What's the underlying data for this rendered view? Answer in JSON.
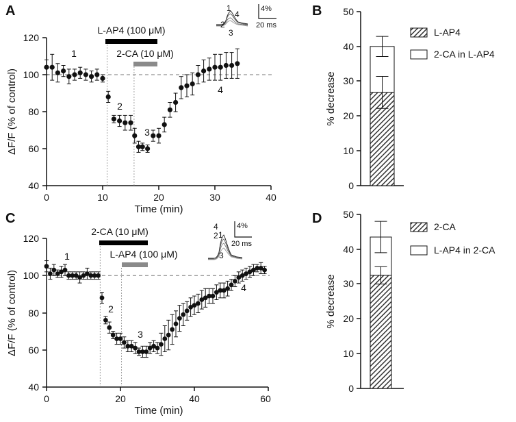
{
  "chart_data": [
    {
      "panel": "A",
      "type": "scatter",
      "xlabel": "Time (min)",
      "ylabel": "ΔF/F (% of control)",
      "xlim": [
        0,
        40
      ],
      "ylim": [
        40,
        120
      ],
      "xticks": [
        0,
        10,
        20,
        30,
        40
      ],
      "yticks": [
        40,
        60,
        80,
        100,
        120
      ],
      "baseline": 100,
      "drug_bars": [
        {
          "label": "L-AP4 (100 μM)",
          "start": 10.5,
          "end": 19.8,
          "color": "#000000"
        },
        {
          "label": "2-CA (10 μM)",
          "start": 15.5,
          "end": 19.8,
          "color": "#8a8a8a"
        }
      ],
      "markers": [
        10.8,
        15.6
      ],
      "phase_labels": [
        {
          "text": "1",
          "x": 5,
          "y": 108
        },
        {
          "text": "2",
          "x": 13,
          "y": 78
        },
        {
          "text": "3",
          "x": 18,
          "y": 64
        },
        {
          "text": "4",
          "x": 31.5,
          "y": 94
        }
      ],
      "points": {
        "x": [
          0,
          1,
          2,
          3,
          4,
          5,
          6,
          7,
          8,
          9,
          10,
          11,
          12,
          13,
          14,
          15,
          15.7,
          16.4,
          17.1,
          18,
          19,
          20,
          21,
          22,
          23,
          24,
          25,
          26,
          27,
          28,
          29,
          30,
          31,
          32,
          33,
          34
        ],
        "y": [
          104,
          104,
          101,
          102,
          99,
          100,
          101,
          100,
          99,
          100,
          98,
          88,
          76,
          75,
          74,
          74,
          67,
          61,
          61,
          60,
          67,
          67,
          73,
          81,
          85,
          93,
          94,
          95,
          100,
          102,
          103,
          104,
          104,
          105,
          105,
          106
        ],
        "err": [
          4,
          7,
          5,
          3,
          4,
          3,
          3,
          3,
          3,
          3,
          2,
          3,
          2,
          3,
          4,
          4,
          4,
          3,
          2,
          2,
          3,
          4,
          4,
          4,
          5,
          6,
          6,
          6,
          5,
          6,
          6,
          7,
          7,
          7,
          7,
          8
        ]
      }
    },
    {
      "panel": "B",
      "type": "bar",
      "ylabel": "% decrease",
      "ylim": [
        0,
        50
      ],
      "yticks": [
        0,
        10,
        20,
        30,
        40,
        50
      ],
      "series": [
        {
          "name": "L-AP4",
          "value": 26.8,
          "err": 4.6
        },
        {
          "name": "2-CA in L-AP4",
          "value": 13.2,
          "err": 2.9
        }
      ],
      "total": 40.0,
      "legend": [
        "L-AP4",
        "2-CA in L-AP4"
      ]
    },
    {
      "panel": "C",
      "type": "scatter",
      "xlabel": "Time (min)",
      "ylabel": "ΔF/F (% of control)",
      "xlim": [
        0,
        60
      ],
      "ylim": [
        40,
        120
      ],
      "xticks": [
        0,
        20,
        40,
        60
      ],
      "yticks": [
        40,
        60,
        80,
        100,
        120
      ],
      "baseline": 100,
      "drug_bars": [
        {
          "label": "2-CA (10 μM)",
          "start": 14.5,
          "end": 27.5,
          "color": "#000000"
        },
        {
          "label": "L-AP4 (100 μM)",
          "start": 20.3,
          "end": 27.5,
          "color": "#8a8a8a"
        }
      ],
      "markers": [
        14.5,
        20.3
      ],
      "phase_labels": [
        {
          "text": "1",
          "x": 5.5,
          "y": 104
        },
        {
          "text": "2",
          "x": 17.5,
          "y": 70
        },
        {
          "text": "3",
          "x": 25.5,
          "y": 62
        },
        {
          "text": "4",
          "x": 53,
          "y": 94
        }
      ],
      "points": {
        "x": [
          0,
          1,
          2,
          3,
          4,
          5,
          6,
          7,
          8,
          9,
          10,
          11,
          12,
          13,
          14,
          15,
          16,
          17,
          18,
          19,
          20,
          21,
          22,
          23,
          24,
          25,
          26,
          27,
          28,
          29,
          30,
          31,
          32,
          33,
          34,
          35,
          36,
          37,
          38,
          39,
          40,
          41,
          42,
          43,
          44,
          45,
          46,
          47,
          48,
          49,
          50,
          51,
          52,
          53,
          54,
          55,
          56,
          57,
          58,
          59
        ],
        "y": [
          105,
          101,
          103,
          101,
          102,
          103,
          100,
          100,
          100,
          99,
          100,
          101,
          100,
          100,
          100,
          88,
          76,
          72,
          68,
          66,
          66,
          64,
          62,
          62,
          61,
          59,
          59,
          59,
          61,
          62,
          61,
          63,
          66,
          68,
          71,
          74,
          77,
          79,
          81,
          83,
          84,
          85,
          87,
          88,
          89,
          89,
          91,
          92,
          92,
          93,
          95,
          97,
          99,
          100,
          101,
          102,
          103,
          104,
          104,
          103
        ],
        "err": [
          3,
          3,
          3,
          2,
          3,
          3,
          2,
          2,
          2,
          3,
          2,
          3,
          2,
          2,
          2,
          3,
          2,
          3,
          2,
          3,
          3,
          3,
          3,
          3,
          3,
          2,
          3,
          3,
          3,
          3,
          3,
          6,
          7,
          8,
          8,
          7,
          7,
          6,
          5,
          5,
          5,
          5,
          5,
          5,
          4,
          4,
          4,
          4,
          4,
          4,
          3,
          3,
          3,
          3,
          3,
          3,
          3,
          2,
          3,
          2
        ]
      }
    },
    {
      "panel": "D",
      "type": "bar",
      "ylabel": "% decrease",
      "ylim": [
        0,
        50
      ],
      "yticks": [
        0,
        10,
        20,
        30,
        40,
        50
      ],
      "series": [
        {
          "name": "2-CA",
          "value": 32.5,
          "err": 2.5
        },
        {
          "name": "L-AP4 in 2-CA",
          "value": 11.0,
          "err": 4.5
        }
      ],
      "total": 43.5,
      "legend": [
        "2-CA",
        "L-AP4 in 2-CA"
      ]
    }
  ],
  "insets": [
    {
      "panel": "A",
      "trace_labels": [
        "1",
        "4",
        "2",
        "3"
      ],
      "scale_y": "4%",
      "scale_x": "20 ms"
    },
    {
      "panel": "C",
      "trace_labels": [
        "1",
        "4",
        "2",
        "3"
      ],
      "scale_y": "4%",
      "scale_x": "20 ms"
    }
  ],
  "text": {
    "A_letter": "A",
    "B_letter": "B",
    "C_letter": "C",
    "D_letter": "D",
    "ylabel_main": "ΔF/F (% of control)",
    "xlabel_main": "Time (min)",
    "ylabel_bar": "% decrease",
    "A_bar1": "L-AP4 (100 μM)",
    "A_bar2": "2-CA (10 μM)",
    "C_bar1": "2-CA (10 μM)",
    "C_bar2": "L-AP4 (100 μM)",
    "B_leg1": "L-AP4",
    "B_leg2": "2-CA in L-AP4",
    "D_leg1": "2-CA",
    "D_leg2": "L-AP4 in 2-CA",
    "A_lbl1": "1",
    "A_lbl2": "2",
    "A_lbl3": "3",
    "A_lbl4": "4",
    "C_lbl1": "1",
    "C_lbl2": "2",
    "C_lbl3": "3",
    "C_lbl4": "4",
    "A_in1": "1",
    "A_in4": "4",
    "A_in2": "2",
    "A_in3": "3",
    "A_sy": "4%",
    "A_sx": "20 ms",
    "C_in1": "1",
    "C_in4": "4",
    "C_in2": "2",
    "C_in3": "3",
    "C_sy": "4%",
    "C_sx": "20 ms"
  },
  "colors": {
    "line": "#111111",
    "grey_bar": "#8a8a8a",
    "hatch": "#333333"
  }
}
